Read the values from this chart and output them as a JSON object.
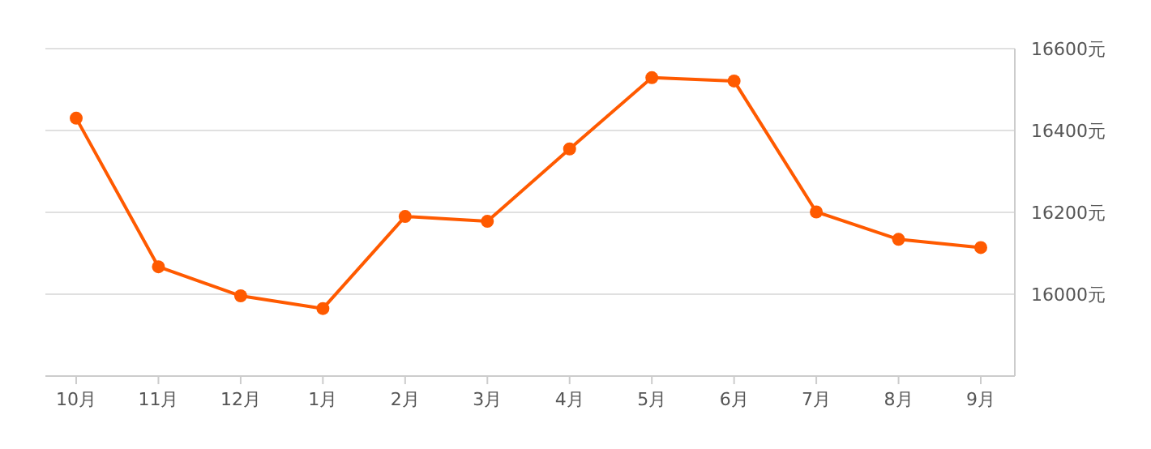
{
  "chart_data": {
    "type": "line",
    "categories": [
      "10月",
      "11月",
      "12月",
      "1月",
      "2月",
      "3月",
      "4月",
      "5月",
      "6月",
      "7月",
      "8月",
      "9月"
    ],
    "series": [
      {
        "color": "#ff5a00",
        "values": [
          16430,
          16067,
          15996,
          15965,
          16190,
          16178,
          16355,
          16529,
          16521,
          16201,
          16134,
          16114
        ]
      }
    ],
    "ylim": [
      15800,
      16600
    ],
    "yticks": [
      {
        "value": 16000,
        "label": "16000元"
      },
      {
        "value": 16200,
        "label": "16200元"
      },
      {
        "value": 16400,
        "label": "16400元"
      },
      {
        "value": 16600,
        "label": "16600元"
      }
    ],
    "grid": "y",
    "marker": "circle",
    "line_style": "solid"
  }
}
